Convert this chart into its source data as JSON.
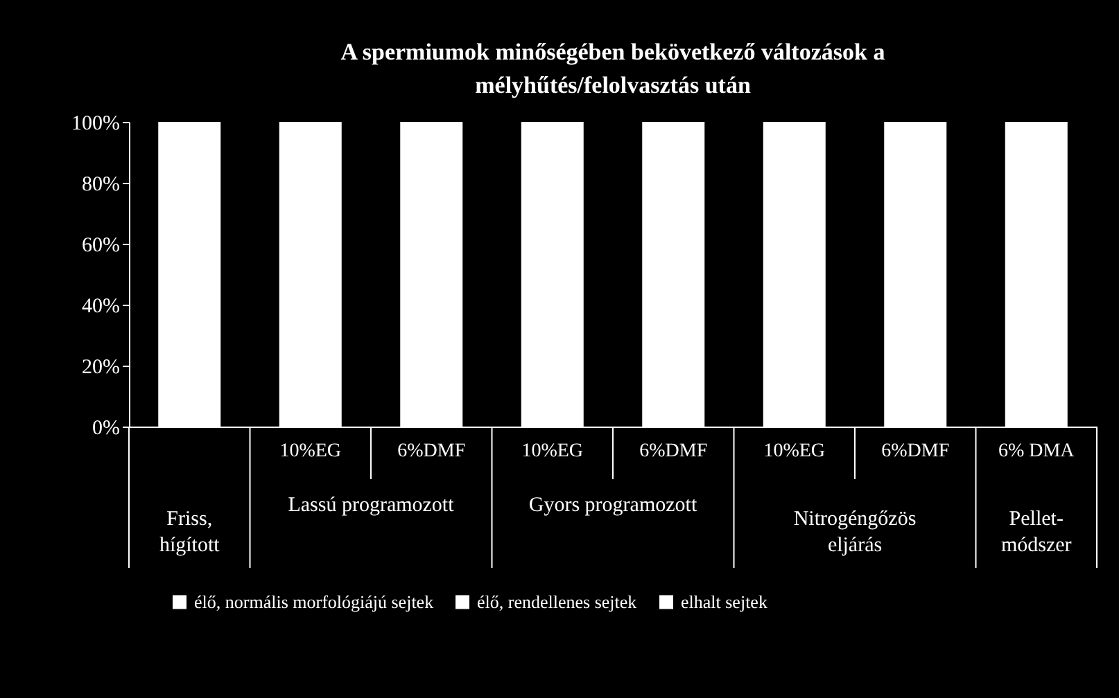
{
  "chart_data": {
    "type": "bar",
    "title": "A spermiumok minőségében bekövetkező változások a mélyhűtés/felolvasztás után",
    "categories": [
      null,
      "10%EG",
      "6%DMF",
      "10%EG",
      "6%DMF",
      "10%EG",
      "6%DMF",
      "6% DMA"
    ],
    "annotations": [
      "Friss, hígított",
      "Lassú programozott",
      "Gyors programozott",
      "Nitrogéngőzös eljárás",
      "Pellet-módszer"
    ],
    "series": [
      {
        "name": "élő, normális morfológiájú sejtek",
        "color": "#ffffff",
        "values": [
          100,
          100,
          100,
          100,
          100,
          100,
          100,
          100
        ]
      },
      {
        "name": "élő, rendellenes sejtek",
        "color": "#ffffff",
        "values": [
          null,
          null,
          null,
          null,
          null,
          null,
          null,
          null
        ]
      },
      {
        "name": "elhalt sejtek",
        "color": "#ffffff",
        "values": [
          null,
          null,
          null,
          null,
          null,
          null,
          null,
          null
        ]
      }
    ],
    "ylim": [
      0,
      100
    ],
    "yticks": [
      {
        "value": 0,
        "label": "0%"
      },
      {
        "value": 20,
        "label": "20%"
      },
      {
        "value": 40,
        "label": "40%"
      },
      {
        "value": 60,
        "label": "60%"
      },
      {
        "value": 80,
        "label": "80%"
      },
      {
        "value": 100,
        "label": "100%"
      }
    ],
    "legend": "bottom",
    "grid": false
  }
}
